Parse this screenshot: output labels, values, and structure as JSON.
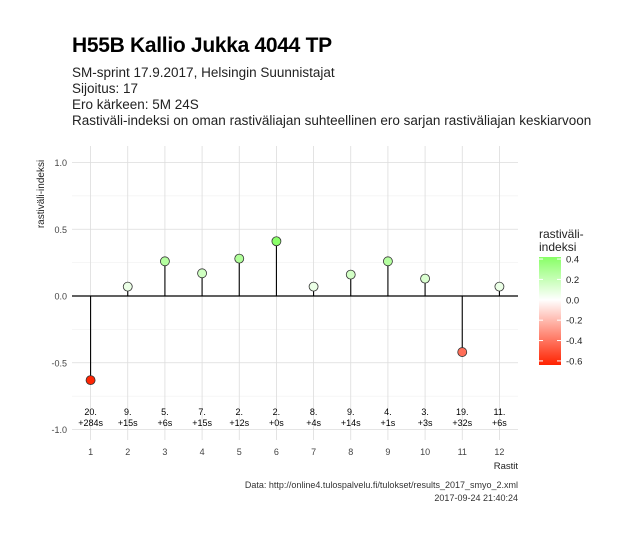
{
  "title": "H55B Kallio Jukka 4044 TP",
  "subtitles": [
    "SM-sprint 17.9.2017, Helsingin Suunnistajat",
    "Sijoitus: 17",
    "Ero kärkeen: 5M 24S",
    "Rastiväli-indeksi on oman rastiväliajan suhteellinen ero sarjan rastiväliajan keskiarvoon"
  ],
  "caption_source": "Data: http://online4.tulospalvelu.fi/tulokset/results_2017_smyo_2.xml",
  "caption_time": "2017-09-24 21:40:24",
  "chart_data": {
    "type": "lollipop",
    "xlabel": "Rastit",
    "ylabel": "rastiväli-indeksi",
    "ylim": [
      -1.0,
      1.0
    ],
    "yticks": [
      -1.0,
      -0.5,
      0.0,
      0.5,
      1.0
    ],
    "ytick_labels": [
      "-1.0",
      "-0.5",
      "0.0",
      "0.5",
      "1.0"
    ],
    "grid": true,
    "x": [
      1,
      2,
      3,
      4,
      5,
      6,
      7,
      8,
      9,
      10,
      11,
      12
    ],
    "values": [
      -0.63,
      0.07,
      0.26,
      0.17,
      0.28,
      0.41,
      0.07,
      0.16,
      0.26,
      0.13,
      -0.42,
      0.07
    ],
    "point_labels": [
      [
        "20.",
        "+284s"
      ],
      [
        "9.",
        "+15s"
      ],
      [
        "5.",
        "+6s"
      ],
      [
        "7.",
        "+15s"
      ],
      [
        "2.",
        "+12s"
      ],
      [
        "2.",
        "+0s"
      ],
      [
        "8.",
        "+4s"
      ],
      [
        "9.",
        "+14s"
      ],
      [
        "4.",
        "+1s"
      ],
      [
        "3.",
        "+3s"
      ],
      [
        "19.",
        "+32s"
      ],
      [
        "11.",
        "+6s"
      ]
    ],
    "legend": {
      "title": [
        "rastiväli-",
        "indeksi"
      ],
      "position": "right",
      "ticks": [
        0.4,
        0.2,
        0.0,
        -0.2,
        -0.4,
        -0.6
      ],
      "tick_labels": [
        "0.4",
        "0.2",
        "0.0",
        "-0.2",
        "-0.4",
        "-0.6"
      ],
      "range": [
        -0.64,
        0.42
      ],
      "colors": {
        "low": "#ff2200",
        "mid": "#ffffff",
        "high": "#88ff66"
      }
    }
  }
}
